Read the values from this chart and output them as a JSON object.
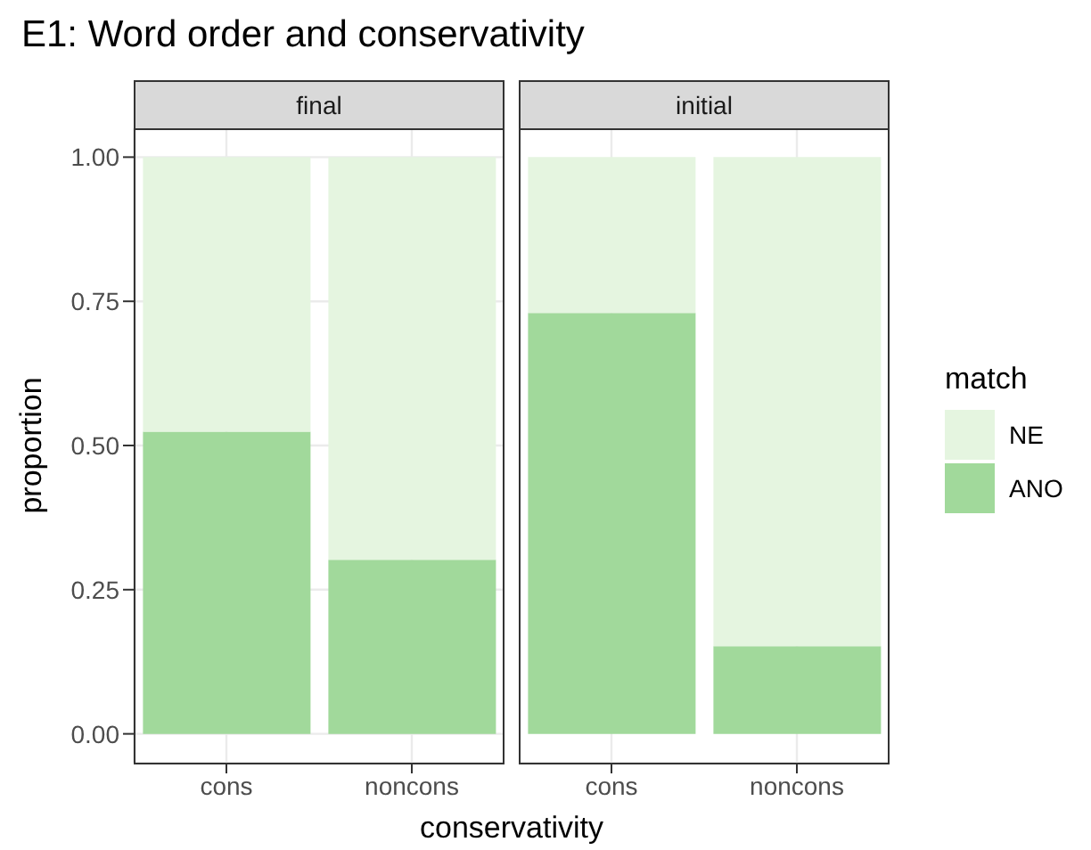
{
  "chart_data": [
    {
      "type": "bar",
      "title": "E1: Word order and conservativity",
      "subtitle": "final",
      "xlabel": "conservativity",
      "ylabel": "proportion",
      "categories": [
        "cons",
        "noncons"
      ],
      "stacked": true,
      "series": [
        {
          "name": "ANO",
          "color": "#a1d99b",
          "values": [
            0.524,
            0.302
          ]
        },
        {
          "name": "NE",
          "color": "#e5f5e0",
          "values": [
            0.476,
            0.698
          ]
        }
      ],
      "ylim": [
        -0.05,
        1.05
      ],
      "yticks": [
        {
          "value": 0,
          "label": "0.00"
        },
        {
          "value": 0.25,
          "label": "0.25"
        },
        {
          "value": 0.5,
          "label": "0.50"
        },
        {
          "value": 0.75,
          "label": "0.75"
        },
        {
          "value": 1,
          "label": "1.00"
        }
      ],
      "grid": true,
      "legend": "right",
      "legend_title": "match"
    },
    {
      "type": "bar",
      "subtitle": "initial",
      "categories": [
        "cons",
        "noncons"
      ],
      "stacked": true,
      "series": [
        {
          "color": "#a1d99b",
          "values": [
            0.73,
            0.152
          ]
        },
        {
          "color": "#e5f5e0",
          "values": [
            0.27,
            0.848
          ]
        }
      ],
      "ylim": [
        -0.05,
        1.05
      ],
      "yticks": [
        {
          "value": 0,
          "label": null
        },
        {
          "value": 0.25,
          "label": null
        },
        {
          "value": 0.5,
          "label": null
        },
        {
          "value": 0.75,
          "label": null
        },
        {
          "value": 1,
          "label": null
        }
      ],
      "grid": true,
      "tick_labels": "x"
    }
  ]
}
